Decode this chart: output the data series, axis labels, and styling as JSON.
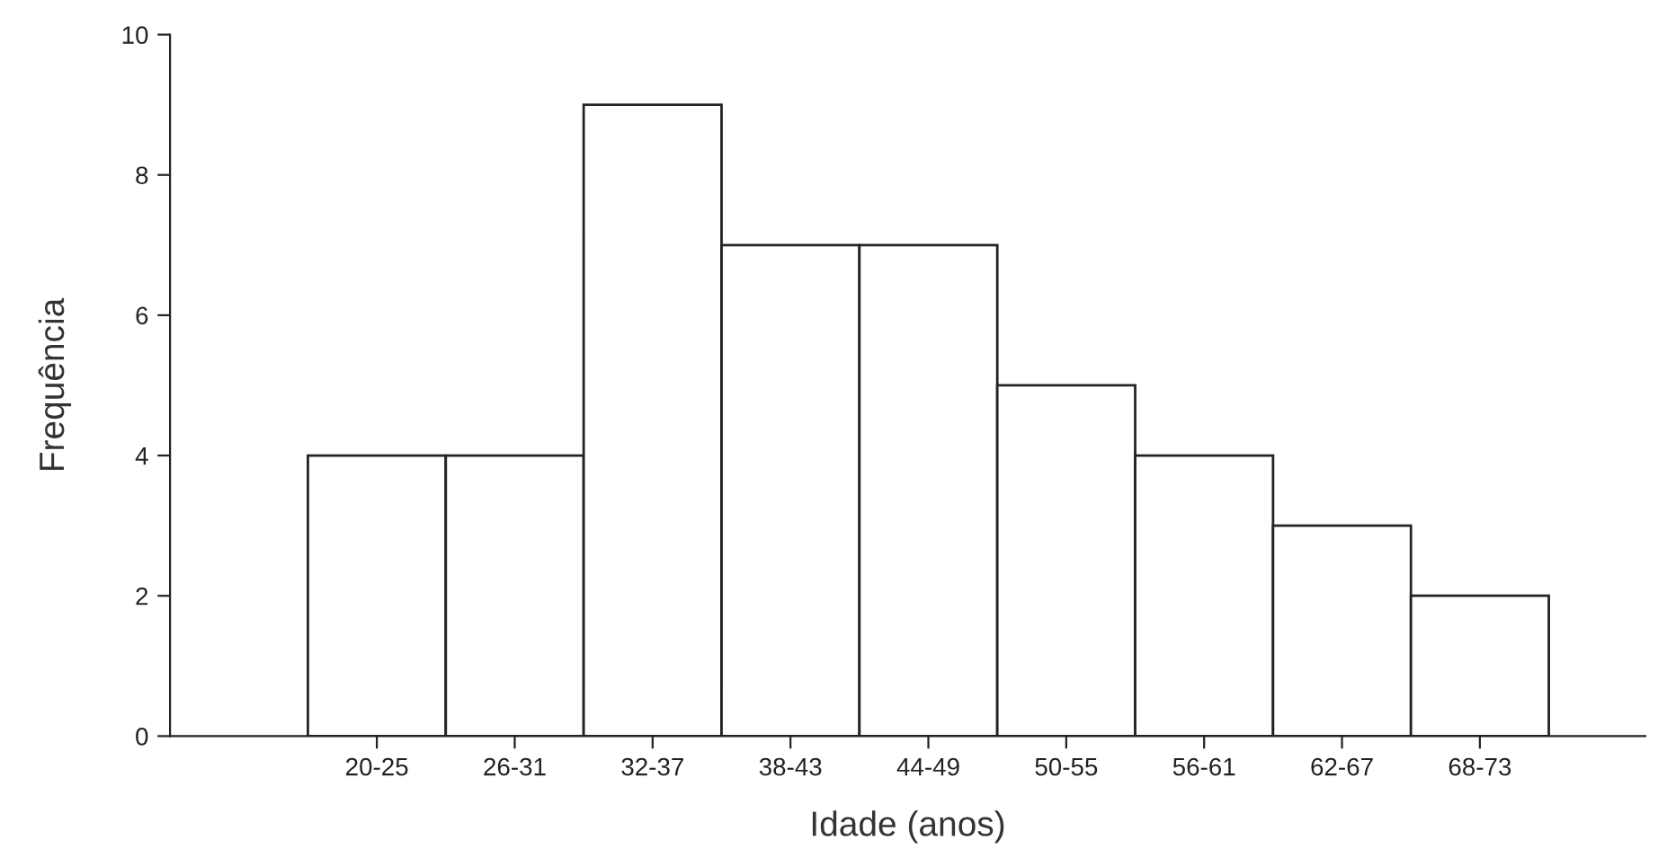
{
  "chart_data": {
    "type": "bar",
    "xlabel": "Idade (anos)",
    "ylabel": "Frequência",
    "categories": [
      "20-25",
      "26-31",
      "32-37",
      "38-43",
      "44-49",
      "50-55",
      "56-61",
      "62-67",
      "68-73"
    ],
    "values": [
      4,
      4,
      9,
      7,
      7,
      5,
      4,
      3,
      2
    ],
    "color": "#ffffff",
    "ylim": [
      0,
      10
    ],
    "yticks": [
      0,
      2,
      4,
      6,
      8,
      10
    ],
    "grid": false,
    "legend": false
  }
}
